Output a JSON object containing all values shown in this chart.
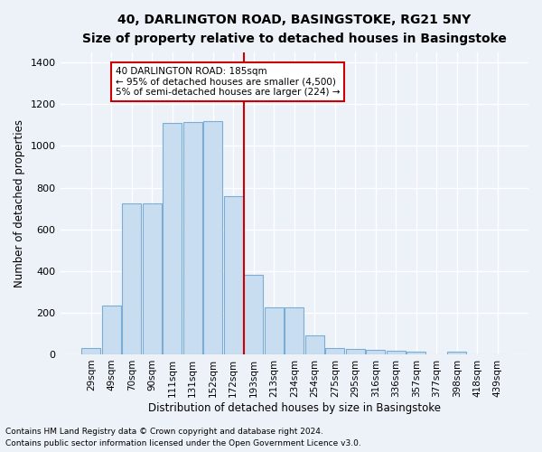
{
  "title_line1": "40, DARLINGTON ROAD, BASINGSTOKE, RG21 5NY",
  "title_line2": "Size of property relative to detached houses in Basingstoke",
  "xlabel": "Distribution of detached houses by size in Basingstoke",
  "ylabel": "Number of detached properties",
  "bar_labels": [
    "29sqm",
    "49sqm",
    "70sqm",
    "90sqm",
    "111sqm",
    "131sqm",
    "152sqm",
    "172sqm",
    "193sqm",
    "213sqm",
    "234sqm",
    "254sqm",
    "275sqm",
    "295sqm",
    "316sqm",
    "336sqm",
    "357sqm",
    "377sqm",
    "398sqm",
    "418sqm",
    "439sqm"
  ],
  "bar_values": [
    30,
    235,
    725,
    725,
    1110,
    1115,
    1120,
    760,
    380,
    225,
    225,
    90,
    30,
    28,
    22,
    18,
    13,
    0,
    12,
    0,
    0
  ],
  "bar_color": "#c9ddf0",
  "bar_edge_color": "#7badd4",
  "vline_x_index": 8,
  "vline_color": "#cc0000",
  "ylim": [
    0,
    1450
  ],
  "yticks": [
    0,
    200,
    400,
    600,
    800,
    1000,
    1200,
    1400
  ],
  "annotation_text": "40 DARLINGTON ROAD: 185sqm\n← 95% of detached houses are smaller (4,500)\n5% of semi-detached houses are larger (224) →",
  "annotation_box_color": "#cc0000",
  "footnote1": "Contains HM Land Registry data © Crown copyright and database right 2024.",
  "footnote2": "Contains public sector information licensed under the Open Government Licence v3.0.",
  "bg_color": "#edf2f9",
  "plot_bg_color": "#edf2f9",
  "grid_color": "#ffffff",
  "title_fontsize": 10,
  "subtitle_fontsize": 8.5,
  "ylabel_fontsize": 8.5,
  "xlabel_fontsize": 8.5,
  "tick_fontsize": 8,
  "xtick_fontsize": 7.5,
  "annot_fontsize": 7.5,
  "footnote_fontsize": 6.5
}
